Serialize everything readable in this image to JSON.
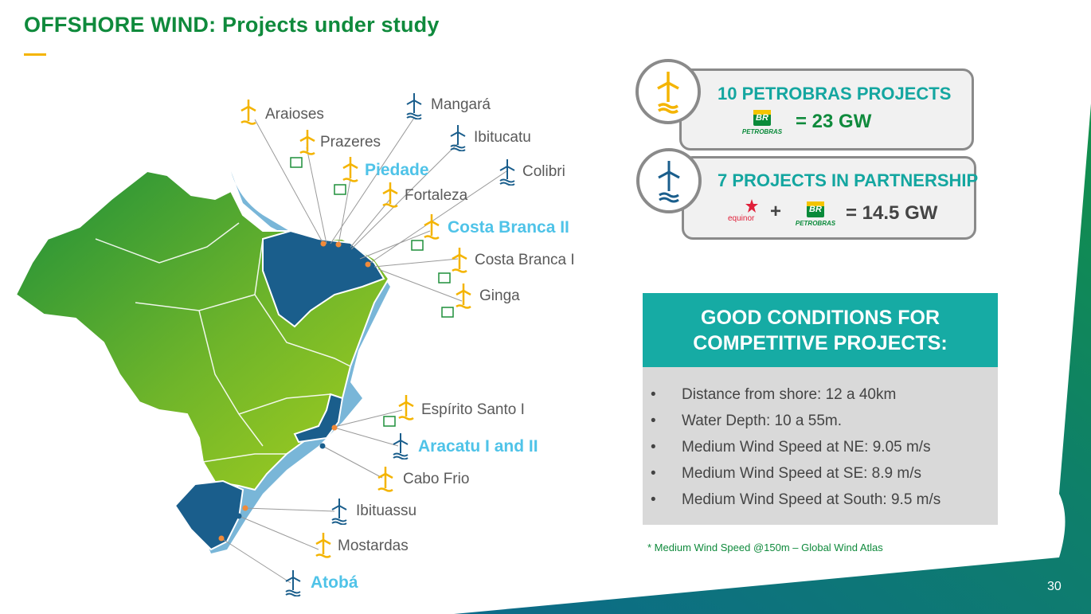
{
  "title": "OFFSHORE WIND:  Projects under study",
  "map_labels": [
    {
      "name": "Araioses",
      "highlight": false,
      "turbine": "yellow"
    },
    {
      "name": "Prazeres",
      "highlight": false,
      "turbine": "yellow"
    },
    {
      "name": "Piedade",
      "highlight": true,
      "turbine": "yellow"
    },
    {
      "name": "Fortaleza",
      "highlight": false,
      "turbine": "yellow"
    },
    {
      "name": "Mangará",
      "highlight": false,
      "turbine": "blue"
    },
    {
      "name": "Ibitucatu",
      "highlight": false,
      "turbine": "blue"
    },
    {
      "name": "Colibri",
      "highlight": false,
      "turbine": "blue"
    },
    {
      "name": "Costa Branca II",
      "highlight": true,
      "turbine": "yellow"
    },
    {
      "name": "Costa Branca I",
      "highlight": false,
      "turbine": "yellow"
    },
    {
      "name": "Ginga",
      "highlight": false,
      "turbine": "yellow"
    },
    {
      "name": "Espírito Santo I",
      "highlight": false,
      "turbine": "yellow"
    },
    {
      "name": "Aracatu I and II",
      "highlight": true,
      "turbine": "blue"
    },
    {
      "name": "Cabo Frio",
      "highlight": false,
      "turbine": "yellow"
    },
    {
      "name": "Ibituassu",
      "highlight": false,
      "turbine": "blue"
    },
    {
      "name": "Mostardas",
      "highlight": false,
      "turbine": "yellow"
    },
    {
      "name": "Atobá",
      "highlight": true,
      "turbine": "blue"
    }
  ],
  "card1": {
    "title": "10 PETROBRAS PROJECTS",
    "value": "= 23 GW",
    "logo": "PETROBRAS"
  },
  "card2": {
    "title": "7 PROJECTS IN PARTNERSHIP",
    "plus": "+",
    "value": "= 14.5 GW",
    "partner": "equinor",
    "logo": "PETROBRAS"
  },
  "br_mark": "BR",
  "conditions": {
    "heading_1": "GOOD CONDITIONS FOR",
    "heading_2": "COMPETITIVE PROJECTS:",
    "bullet": "•",
    "items": [
      "Distance from shore: 12 a 40km",
      "Water Depth: 10 a 55m.",
      "Medium Wind Speed at NE: 9.05 m/s",
      "Medium Wind Speed at SE: 8.9 m/s",
      "Medium Wind Speed at South: 9.5 m/s"
    ]
  },
  "footnote": "* Medium Wind Speed @150m – Global Wind Atlas",
  "page_number": "30",
  "colors": {
    "green": "#0f8a3c",
    "teal": "#16aba4",
    "yellow": "#f4b400",
    "blue": "#1a5e8c",
    "highlight": "#4fc3e8"
  }
}
